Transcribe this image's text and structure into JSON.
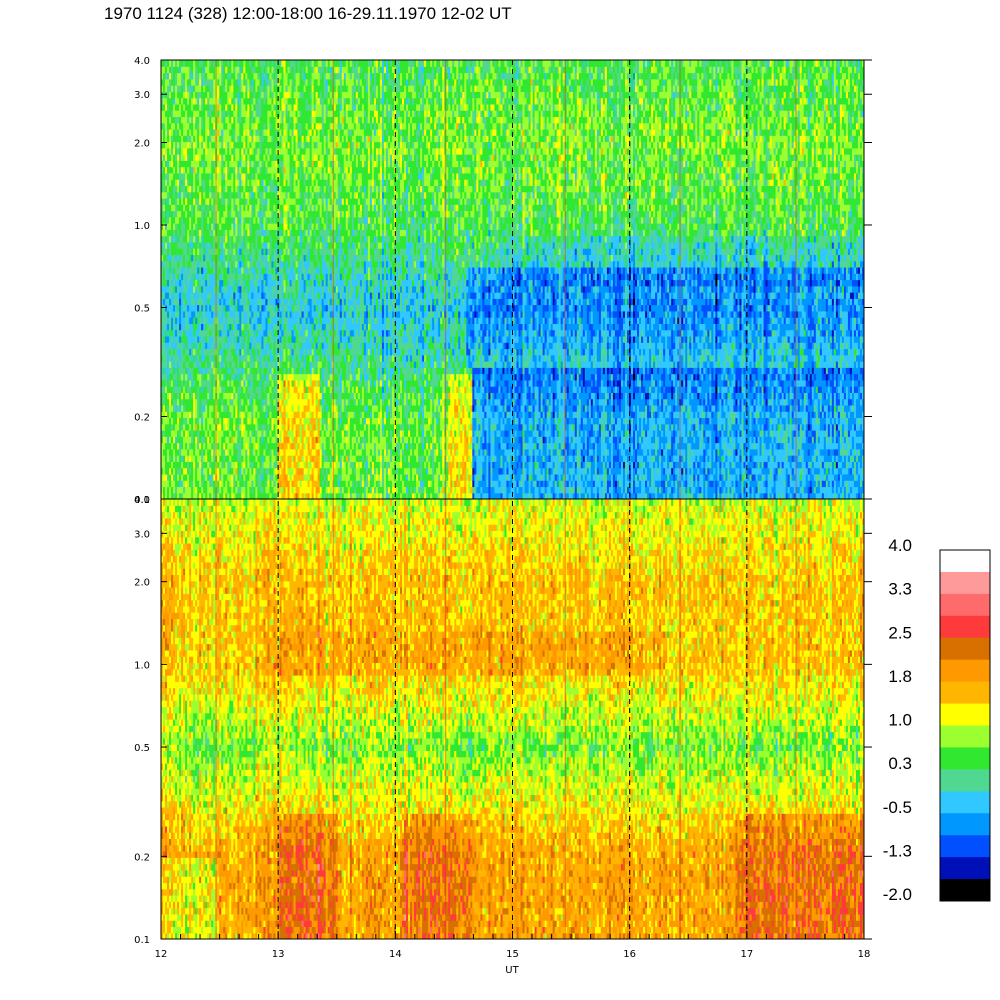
{
  "title": "1970 1124 (328) 12:00-18:00 16-29.11.1970  12-02 UT",
  "chart_data": {
    "type": "heatmap",
    "title": "1970 1124 (328) 12:00-18:00 16-29.11.1970  12-02 UT",
    "xlabel": "UT",
    "xlim": [
      12,
      18
    ],
    "x_ticks": [
      "12",
      "13",
      "14",
      "15",
      "16",
      "17",
      "18"
    ],
    "x_tick_values": [
      12,
      13,
      14,
      15,
      16,
      17,
      18
    ],
    "y_scale": "log",
    "ylim": [
      0.1,
      4.0
    ],
    "y_ticks": [
      "0.1",
      "0.2",
      "0.5",
      "1.0",
      "2.0",
      "3.0",
      "4.0"
    ],
    "y_tick_values": [
      0.1,
      0.2,
      0.5,
      1.0,
      2.0,
      3.0,
      4.0
    ],
    "panels": [
      {
        "name": "upper",
        "dominant_level_by_frequency": [
          {
            "freq": 4.0,
            "level": 0.3
          },
          {
            "freq": 2.0,
            "level": 0.6
          },
          {
            "freq": 1.0,
            "level": 0.3
          },
          {
            "freq": 0.5,
            "level": -0.5
          },
          {
            "freq": 0.2,
            "level": 0.5
          }
        ],
        "notes": "yellow-green patches 13:00-13:30 and 14:30-14:40 near 0.15-0.25; cyan/blue regions after 14:40 below 0.3"
      },
      {
        "name": "lower",
        "dominant_level_by_frequency": [
          {
            "freq": 4.0,
            "level": 1.0
          },
          {
            "freq": 2.0,
            "level": 1.6
          },
          {
            "freq": 1.0,
            "level": 1.6
          },
          {
            "freq": 0.5,
            "level": 0.6
          },
          {
            "freq": 0.2,
            "level": 1.9
          }
        ],
        "notes": "dark orange patches near 0.1-0.25 around 13:00-13:30, 14:00-14:40, 17:00-18:00"
      }
    ],
    "vertical_dashed_lines": [
      13,
      14,
      15,
      16,
      17
    ],
    "colorbar": {
      "labels": [
        "4.0",
        "3.3",
        "2.5",
        "1.8",
        "1.0",
        "0.3",
        "-0.5",
        "-1.3",
        "-2.0"
      ],
      "label_values": [
        4.0,
        3.3,
        2.5,
        1.8,
        1.0,
        0.3,
        -0.5,
        -1.3,
        -2.0
      ],
      "colors_top_to_bottom": [
        "#ffffff",
        "#ff9a9a",
        "#ff6a6a",
        "#ff3a3a",
        "#d87000",
        "#ff9900",
        "#ffb600",
        "#ffff00",
        "#9cff30",
        "#30e830",
        "#50d890",
        "#30c8ff",
        "#0098ff",
        "#0050ff",
        "#0010b8",
        "#000000"
      ]
    }
  }
}
